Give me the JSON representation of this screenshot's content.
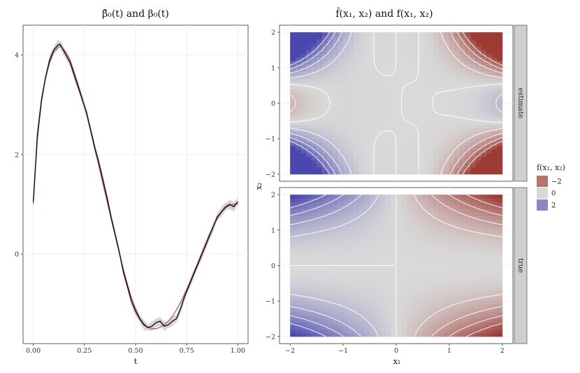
{
  "chart_data": [
    {
      "type": "line",
      "title": "β̂₀(t)  and  β₀(t)",
      "xlabel": "t",
      "ylabel": "",
      "xlim": [
        -0.05,
        1.05
      ],
      "ylim": [
        -1.8,
        4.6
      ],
      "xticks": [
        "0.00",
        "0.25",
        "0.50",
        "0.75",
        "1.00"
      ],
      "xtick_values": [
        0,
        0.25,
        0.5,
        0.75,
        1.0
      ],
      "yticks": [
        "0",
        "2",
        "4"
      ],
      "ytick_values": [
        0,
        2,
        4
      ],
      "colors": {
        "estimate": "#111111",
        "true": "#b5433e",
        "band": "#c8c8c8"
      },
      "series": [
        {
          "name": "estimate",
          "x": [
            0,
            0.02,
            0.04,
            0.06,
            0.08,
            0.1,
            0.12,
            0.13,
            0.14,
            0.16,
            0.18,
            0.2,
            0.22,
            0.24,
            0.26,
            0.28,
            0.3,
            0.32,
            0.34,
            0.36,
            0.38,
            0.4,
            0.42,
            0.44,
            0.46,
            0.48,
            0.5,
            0.52,
            0.54,
            0.56,
            0.58,
            0.6,
            0.62,
            0.64,
            0.66,
            0.68,
            0.7,
            0.72,
            0.74,
            0.76,
            0.78,
            0.8,
            0.82,
            0.84,
            0.86,
            0.88,
            0.9,
            0.92,
            0.94,
            0.96,
            0.98,
            1.0
          ],
          "values": [
            1.05,
            2.4,
            3.1,
            3.55,
            3.9,
            4.1,
            4.2,
            4.22,
            4.15,
            4.0,
            3.85,
            3.6,
            3.35,
            3.1,
            2.85,
            2.5,
            2.15,
            1.85,
            1.5,
            1.15,
            0.75,
            0.4,
            0.05,
            -0.35,
            -0.65,
            -0.95,
            -1.15,
            -1.3,
            -1.42,
            -1.48,
            -1.45,
            -1.38,
            -1.35,
            -1.45,
            -1.42,
            -1.35,
            -1.3,
            -1.1,
            -0.85,
            -0.65,
            -0.45,
            -0.25,
            -0.05,
            0.15,
            0.35,
            0.55,
            0.75,
            0.85,
            0.95,
            1.0,
            0.95,
            1.05
          ]
        },
        {
          "name": "true",
          "x": [
            0,
            0.02,
            0.04,
            0.06,
            0.08,
            0.1,
            0.12,
            0.13,
            0.14,
            0.16,
            0.18,
            0.2,
            0.22,
            0.24,
            0.26,
            0.28,
            0.3,
            0.32,
            0.34,
            0.36,
            0.38,
            0.4,
            0.42,
            0.44,
            0.46,
            0.48,
            0.5,
            0.52,
            0.54,
            0.56,
            0.58,
            0.6,
            0.62,
            0.64,
            0.66,
            0.68,
            0.7,
            0.72,
            0.74,
            0.76,
            0.78,
            0.8,
            0.82,
            0.84,
            0.86,
            0.88,
            0.9,
            0.92,
            0.94,
            0.96,
            0.98,
            1.0
          ],
          "values": [
            1.0,
            2.3,
            3.05,
            3.55,
            3.85,
            4.05,
            4.15,
            4.18,
            4.15,
            4.05,
            3.9,
            3.65,
            3.4,
            3.12,
            2.82,
            2.48,
            2.12,
            1.78,
            1.42,
            1.07,
            0.72,
            0.38,
            0.03,
            -0.3,
            -0.6,
            -0.88,
            -1.1,
            -1.28,
            -1.4,
            -1.47,
            -1.5,
            -1.5,
            -1.47,
            -1.42,
            -1.35,
            -1.25,
            -1.12,
            -0.97,
            -0.8,
            -0.62,
            -0.42,
            -0.22,
            -0.02,
            0.18,
            0.38,
            0.56,
            0.72,
            0.84,
            0.93,
            0.98,
            1.0,
            1.02
          ]
        }
      ]
    },
    {
      "type": "heatmap",
      "title": "f̂(x₁, x₂)  and  f(x₁, x₂)",
      "xlabel": "x₁",
      "ylabel": "x₂",
      "xlim": [
        -2.2,
        2.2
      ],
      "ylim": [
        -2.2,
        2.2
      ],
      "xticks": [
        "−2",
        "−1",
        "0",
        "1",
        "2"
      ],
      "xtick_values": [
        -2,
        -1,
        0,
        1,
        2
      ],
      "yticks": [
        "−2",
        "−1",
        "0",
        "1",
        "2"
      ],
      "ytick_values": [
        -2,
        -1,
        0,
        1,
        2
      ],
      "panels": [
        {
          "label": "estimate",
          "surface": "f(x1,x2) = -(0.55*x1^3 - 0.1*x1)(0.5*x2^2 - 0.1) with noise",
          "contour_color": "#ffffff"
        },
        {
          "label": "true",
          "surface": "f(x1,x2) = -0.25 * x1 * (x2^2)",
          "contour_color": "#ffffff"
        }
      ],
      "legend": {
        "title": "f(x₁, x₂)",
        "entries": [
          {
            "label": "−2",
            "color": "#b5756f"
          },
          {
            "label": "0",
            "color": "#d9d9d9"
          },
          {
            "label": "2",
            "color": "#8a87c7"
          }
        ],
        "placement": "right"
      },
      "colors": {
        "negative": "#9c3a33",
        "zero": "#d9d9d9",
        "positive": "#4a47b0",
        "strip": "#cfcfcf"
      }
    }
  ]
}
